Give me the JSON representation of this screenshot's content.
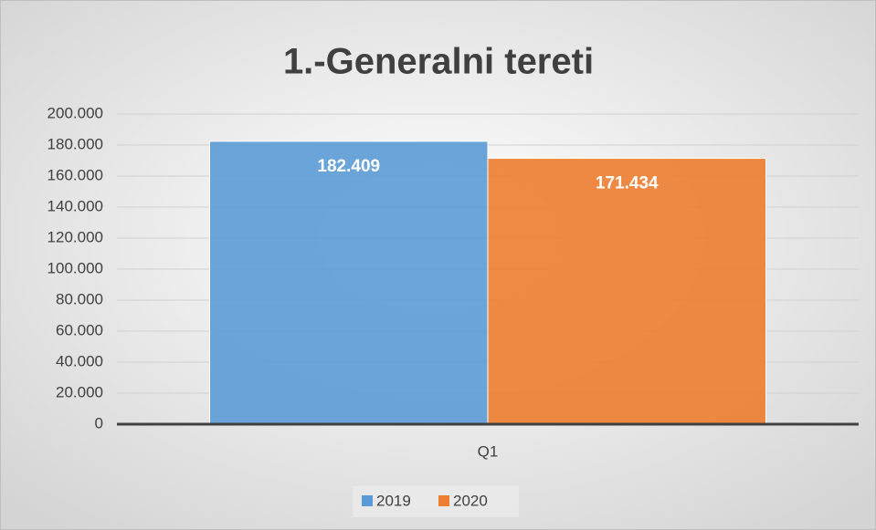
{
  "chart_data": {
    "type": "bar",
    "title": "1.-Generalni tereti",
    "categories": [
      "Q1"
    ],
    "series": [
      {
        "name": "2019",
        "color": "#5b9bd5",
        "values": [
          182409
        ],
        "value_labels": [
          "182.409"
        ]
      },
      {
        "name": "2020",
        "color": "#ed7d31",
        "values": [
          171434
        ],
        "value_labels": [
          "171.434"
        ]
      }
    ],
    "ylim": [
      0,
      200000
    ],
    "yticks": [
      0,
      {
        "value": 20000,
        "label": "20.000"
      },
      {
        "value": 40000,
        "label": "40.000"
      },
      {
        "value": 60000,
        "label": "60.000"
      },
      {
        "value": 80000,
        "label": "80.000"
      },
      {
        "value": 100000,
        "label": "100.000"
      },
      {
        "value": 120000,
        "label": "120.000"
      },
      {
        "value": 140000,
        "label": "140.000"
      },
      {
        "value": 160000,
        "label": "160.000"
      },
      {
        "value": 180000,
        "label": "180.000"
      },
      {
        "value": 200000,
        "label": "200.000"
      }
    ],
    "grid": true,
    "legend": "bottom"
  }
}
